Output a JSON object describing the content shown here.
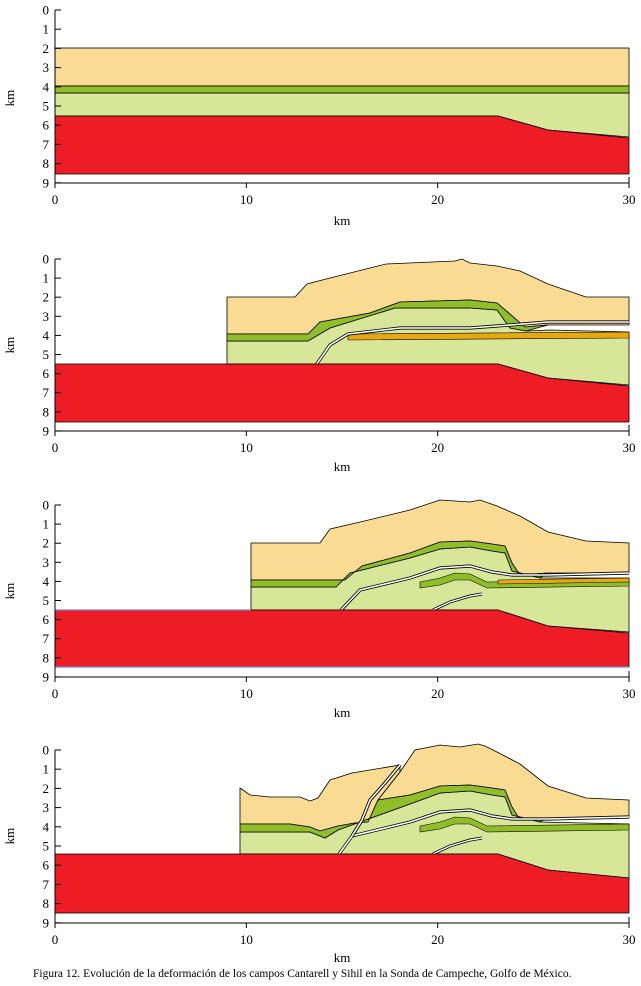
{
  "figure": {
    "caption": "Figura 12. Evolución de la deformación de los campos Cantarell y Sihil en la Sonda de Campeche, Golfo de México.",
    "colors": {
      "upper_unit": "#f9db94",
      "middle_unit": "#d8e69a",
      "marker_bed": "#8fbe2a",
      "salt": "#ee1c24",
      "fault": "#ffffff",
      "orange_bed": "#e9a812",
      "blue_line": "#6b86c8"
    },
    "panels": [
      {
        "id": "stage-1",
        "y_axis_label": "km",
        "x_axis_label": "km",
        "y_ticks": [
          "0",
          "1",
          "2",
          "3",
          "4",
          "5",
          "6",
          "7",
          "8",
          "9"
        ],
        "x_ticks": [
          "0",
          "10",
          "20",
          "30"
        ]
      },
      {
        "id": "stage-2",
        "y_axis_label": "km",
        "x_axis_label": "km",
        "y_ticks": [
          "0",
          "1",
          "2",
          "3",
          "4",
          "5",
          "6",
          "7",
          "8",
          "9"
        ],
        "x_ticks": [
          "0",
          "10",
          "20",
          "30"
        ]
      },
      {
        "id": "stage-3",
        "y_axis_label": "km",
        "x_axis_label": "km",
        "y_ticks": [
          "0",
          "1",
          "2",
          "3",
          "4",
          "5",
          "6",
          "7",
          "8",
          "9"
        ],
        "x_ticks": [
          "0",
          "10",
          "20",
          "30"
        ]
      },
      {
        "id": "stage-4",
        "y_axis_label": "km",
        "x_axis_label": "km",
        "y_ticks": [
          "0",
          "1",
          "2",
          "3",
          "4",
          "5",
          "6",
          "7",
          "8",
          "9"
        ],
        "x_ticks": [
          "0",
          "10",
          "20",
          "30"
        ]
      }
    ]
  }
}
